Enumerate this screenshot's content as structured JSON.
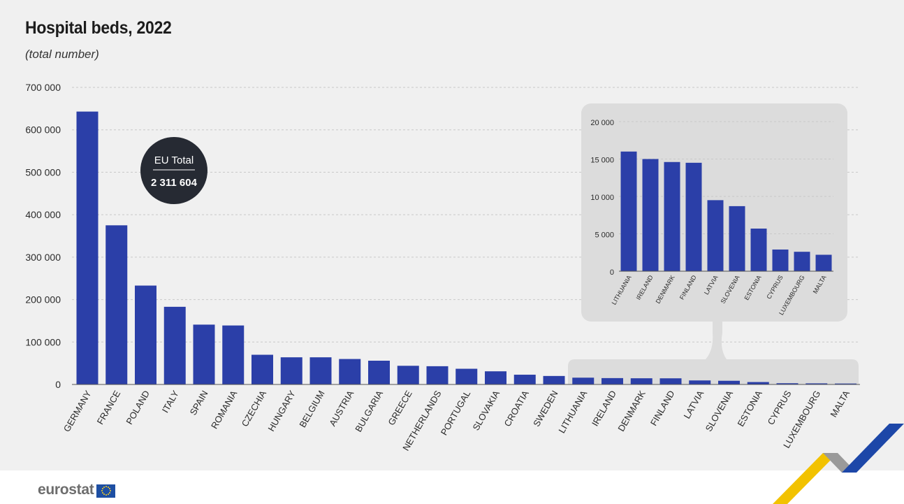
{
  "title": "Hospital beds, 2022",
  "subtitle": "(total number)",
  "badge": {
    "label": "EU Total",
    "value": "2 311 604"
  },
  "footer": {
    "logo_text": "eurostat"
  },
  "colors": {
    "bar": "#2b3fa8",
    "badge": "#262a33",
    "panel": "#f0f0f0",
    "inset": "#dcdcdc",
    "grid": "#c8c8c8",
    "accent_yellow": "#f2c200",
    "accent_blue": "#1d47a8"
  },
  "chart_data": [
    {
      "type": "bar",
      "title": "Hospital beds, 2022",
      "subtitle": "(total number)",
      "categories": [
        "GERMANY",
        "FRANCE",
        "POLAND",
        "ITALY",
        "SPAIN",
        "ROMANIA",
        "CZECHIA",
        "HUNGARY",
        "BELGIUM",
        "AUSTRIA",
        "BULGARIA",
        "GREECE",
        "NETHERLANDS",
        "PORTUGAL",
        "SLOVAKIA",
        "CROATIA",
        "SWEDEN",
        "LITHUANIA",
        "IRELAND",
        "DENMARK",
        "FINLAND",
        "LATVIA",
        "SLOVENIA",
        "ESTONIA",
        "CYPRUS",
        "LUXEMBOURG",
        "MALTA"
      ],
      "values": [
        643000,
        375000,
        233000,
        183000,
        141000,
        139000,
        70000,
        64000,
        64000,
        60000,
        56000,
        44000,
        43000,
        37000,
        31000,
        23000,
        20000,
        16000,
        15000,
        14600,
        14500,
        9500,
        8700,
        5700,
        2900,
        2600,
        2200
      ],
      "ylim": [
        0,
        700000
      ],
      "yticks": [
        "0",
        "100 000",
        "200 000",
        "300 000",
        "400 000",
        "500 000",
        "600 000",
        "700 000"
      ],
      "yticks_values": [
        0,
        100000,
        200000,
        300000,
        400000,
        500000,
        600000,
        700000
      ],
      "grid": true
    },
    {
      "type": "bar",
      "categories": [
        "LITHUANIA",
        "IRELAND",
        "DENMARK",
        "FINLAND",
        "LATVIA",
        "SLOVENIA",
        "ESTONIA",
        "CYPRUS",
        "LUXEMBOURG",
        "MALTA"
      ],
      "values": [
        16000,
        15000,
        14600,
        14500,
        9500,
        8700,
        5700,
        2900,
        2600,
        2200
      ],
      "ylim": [
        0,
        20000
      ],
      "yticks": [
        "0",
        "5 000",
        "10 000",
        "15 000",
        "20 000"
      ],
      "yticks_values": [
        0,
        5000,
        10000,
        15000,
        20000
      ],
      "grid": true
    }
  ]
}
